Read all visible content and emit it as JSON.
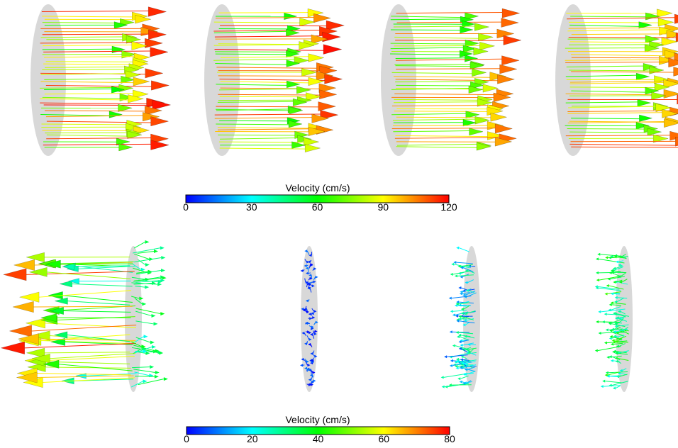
{
  "colorbars": [
    {
      "title": "Velocity (cm/s)",
      "min": 0,
      "max": 120,
      "ticks": [
        "0",
        "30",
        "60",
        "90",
        "120"
      ],
      "colormap": [
        "#0000ff",
        "#00ffff",
        "#00ff00",
        "#ffff00",
        "#ff0000"
      ]
    },
    {
      "title": "Velocity (cm/s)",
      "min": 0,
      "max": 80,
      "ticks": [
        "0",
        "20",
        "40",
        "60",
        "80"
      ],
      "colormap": [
        "#0000ff",
        "#00ffff",
        "#00ff00",
        "#ffff00",
        "#ff0000"
      ]
    }
  ],
  "panels": [
    {
      "row": 1,
      "col": 1,
      "flow": "rightward",
      "speed_range": [
        60,
        120
      ]
    },
    {
      "row": 1,
      "col": 2,
      "flow": "rightward",
      "speed_range": [
        60,
        120
      ]
    },
    {
      "row": 1,
      "col": 3,
      "flow": "rightward",
      "speed_range": [
        60,
        115
      ]
    },
    {
      "row": 1,
      "col": 4,
      "flow": "rightward",
      "speed_range": [
        60,
        115
      ]
    },
    {
      "row": 2,
      "col": 1,
      "flow": "leftward",
      "speed_range": [
        20,
        80
      ]
    },
    {
      "row": 2,
      "col": 2,
      "flow": "none",
      "speed_range": [
        0,
        10
      ]
    },
    {
      "row": 2,
      "col": 3,
      "flow": "leftward",
      "speed_range": [
        5,
        35
      ]
    },
    {
      "row": 2,
      "col": 4,
      "flow": "leftward",
      "speed_range": [
        20,
        45
      ]
    }
  ],
  "disk_color": "#d8d8d8"
}
